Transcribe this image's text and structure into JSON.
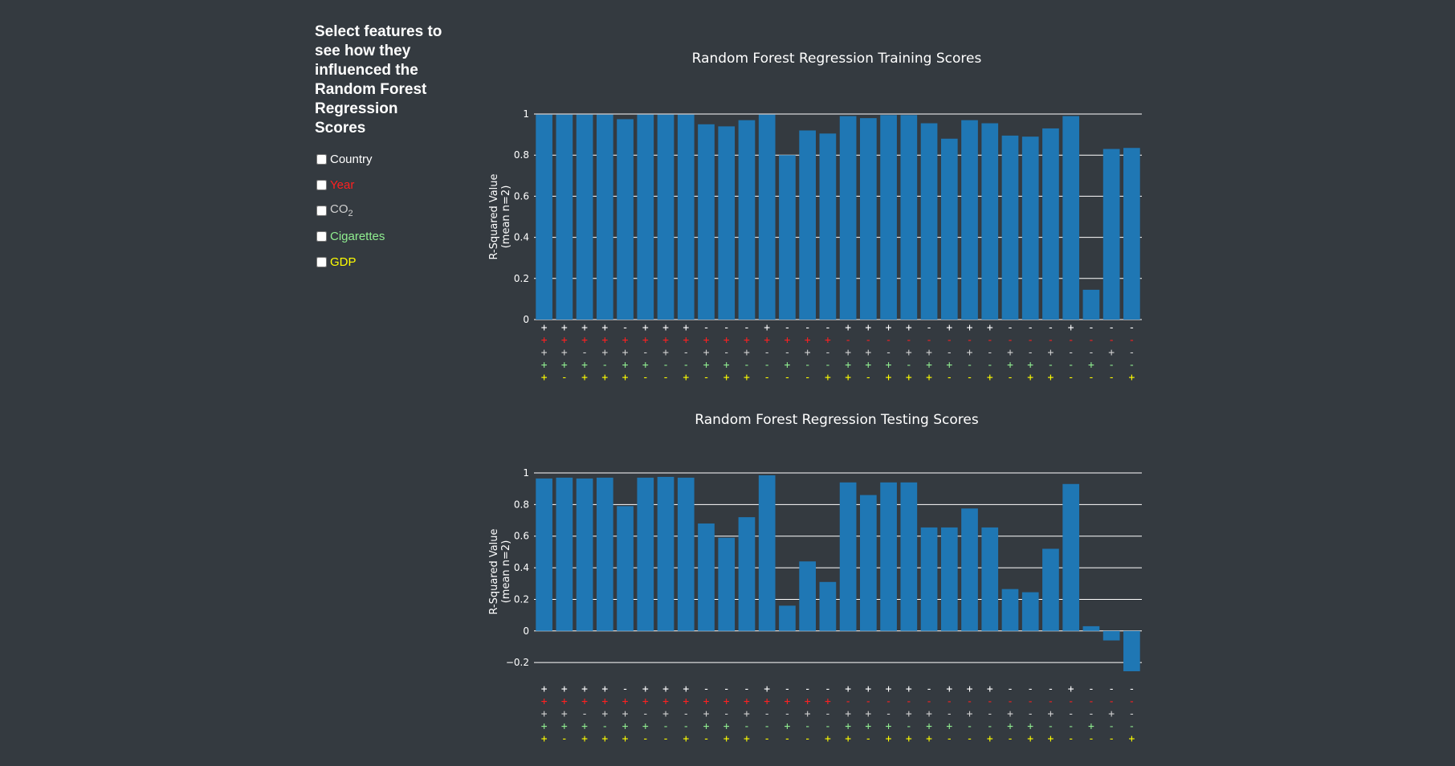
{
  "sidebar": {
    "heading": "Select features to see how they influenced the Random Forest Regression Scores",
    "features": [
      {
        "label": "Country",
        "color": "#ffffff"
      },
      {
        "label": "Year",
        "color": "#ff2020"
      },
      {
        "label": "CO",
        "sub": "2",
        "color": "#d0d0d0"
      },
      {
        "label": "Cigarettes",
        "color": "#90ee90"
      },
      {
        "label": "GDP",
        "color": "#ffff00"
      }
    ]
  },
  "colors": {
    "background": "#343a40",
    "bar": "#1f77b4",
    "grid": "#ffffff"
  },
  "feature_signs": {
    "rows": [
      {
        "color": "#ffffff",
        "signs": [
          "+",
          "+",
          "+",
          "+",
          "-",
          "+",
          "+",
          "+",
          "-",
          "-",
          "-",
          "+",
          "-",
          "-",
          "-",
          "+",
          "+",
          "+",
          "+",
          "-",
          "+",
          "+",
          "+",
          "-",
          "-",
          "-",
          "+",
          "-",
          "-",
          "-"
        ]
      },
      {
        "color": "#ff2020",
        "signs": [
          "+",
          "+",
          "+",
          "+",
          "+",
          "+",
          "+",
          "+",
          "+",
          "+",
          "+",
          "+",
          "+",
          "+",
          "+",
          "-",
          "-",
          "-",
          "-",
          "-",
          "-",
          "-",
          "-",
          "-",
          "-",
          "-",
          "-",
          "-",
          "-",
          "-"
        ]
      },
      {
        "color": "#d0d0d0",
        "signs": [
          "+",
          "+",
          "-",
          "+",
          "+",
          "-",
          "+",
          "-",
          "+",
          "-",
          "+",
          "-",
          "-",
          "+",
          "-",
          "+",
          "+",
          "-",
          "+",
          "+",
          "-",
          "+",
          "-",
          "+",
          "-",
          "+",
          "-",
          "-",
          "+",
          "-"
        ]
      },
      {
        "color": "#90ee90",
        "signs": [
          "+",
          "+",
          "+",
          "-",
          "+",
          "+",
          "-",
          "-",
          "+",
          "+",
          "-",
          "-",
          "+",
          "-",
          "-",
          "+",
          "+",
          "+",
          "-",
          "+",
          "+",
          "-",
          "-",
          "+",
          "+",
          "-",
          "-",
          "+",
          "-",
          "-"
        ]
      },
      {
        "color": "#ffff00",
        "signs": [
          "+",
          "-",
          "+",
          "+",
          "+",
          "-",
          "-",
          "+",
          "-",
          "+",
          "+",
          "-",
          "-",
          "-",
          "+",
          "+",
          "-",
          "+",
          "+",
          "+",
          "-",
          "-",
          "+",
          "-",
          "+",
          "+",
          "-",
          "-",
          "-",
          "+"
        ]
      }
    ]
  },
  "chart_data": [
    {
      "type": "bar",
      "title": "Random Forest Regression Training Scores",
      "ylabel": "R-Squared Value",
      "ylabel2": "(mean n=2)",
      "ylim": [
        0,
        1
      ],
      "yticks": [
        0,
        0.2,
        0.4,
        0.6,
        0.8,
        1
      ],
      "ytick_labels": [
        "0",
        "0.2",
        "0.4",
        "0.6",
        "0.8",
        "1"
      ],
      "grid": true,
      "values": [
        0.997,
        0.997,
        0.997,
        0.997,
        0.975,
        0.997,
        0.997,
        0.997,
        0.95,
        0.94,
        0.97,
        0.997,
        0.8,
        0.92,
        0.905,
        0.99,
        0.98,
        0.995,
        0.995,
        0.955,
        0.88,
        0.97,
        0.955,
        0.895,
        0.89,
        0.93,
        0.99,
        0.145,
        0.83,
        0.835
      ]
    },
    {
      "type": "bar",
      "title": "Random Forest Regression Testing Scores",
      "ylabel": "R-Squared Value",
      "ylabel2": "(mean n=2)",
      "ylim": [
        -0.25,
        1
      ],
      "yticks": [
        -0.2,
        0,
        0.2,
        0.4,
        0.6,
        0.8,
        1
      ],
      "ytick_labels": [
        "−0.2",
        "0",
        "0.2",
        "0.4",
        "0.6",
        "0.8",
        "1"
      ],
      "grid": true,
      "values": [
        0.965,
        0.97,
        0.965,
        0.97,
        0.79,
        0.97,
        0.975,
        0.97,
        0.68,
        0.59,
        0.72,
        0.985,
        0.16,
        0.44,
        0.31,
        0.94,
        0.86,
        0.94,
        0.94,
        0.655,
        0.655,
        0.775,
        0.655,
        0.265,
        0.245,
        0.52,
        0.93,
        0.03,
        -0.06,
        -0.255
      ]
    }
  ]
}
